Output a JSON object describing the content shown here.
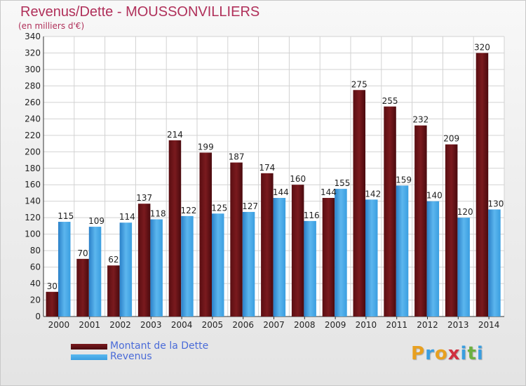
{
  "title": "Revenus/Dette - MOUSSONVILLIERS",
  "subtitle": "(en milliers d'€)",
  "colors": {
    "title": "#b0305a",
    "dette": "#7a1a1e",
    "revenus": "#3a9ee0",
    "legend_text": "#4a6bd8",
    "grid": "#d2d2d2"
  },
  "chart_data": {
    "type": "bar",
    "categories": [
      "2000",
      "2001",
      "2002",
      "2003",
      "2004",
      "2005",
      "2006",
      "2007",
      "2008",
      "2009",
      "2010",
      "2011",
      "2012",
      "2013",
      "2014"
    ],
    "series": [
      {
        "name": "Montant de la Dette",
        "values": [
          30,
          70,
          62,
          137,
          214,
          199,
          187,
          174,
          160,
          144,
          275,
          255,
          232,
          209,
          320
        ]
      },
      {
        "name": "Revenus",
        "values": [
          115,
          109,
          114,
          118,
          122,
          125,
          127,
          144,
          116,
          155,
          142,
          159,
          140,
          120,
          130
        ]
      }
    ],
    "ylim": [
      0,
      340
    ],
    "yticks": [
      0,
      20,
      40,
      60,
      80,
      100,
      120,
      140,
      160,
      180,
      200,
      220,
      240,
      260,
      280,
      300,
      320,
      340
    ],
    "grid": true,
    "legend_position": "bottom-left"
  },
  "legend": [
    {
      "label": "Montant de la Dette"
    },
    {
      "label": "Revenus"
    }
  ],
  "logo": {
    "letters": [
      "P",
      "r",
      "o",
      "x",
      "i",
      "t",
      "i"
    ],
    "colors": [
      "#e8a020",
      "#3a9ee0",
      "#e8a020",
      "#d03040",
      "#3a9ee0",
      "#6cb040",
      "#3a9ee0"
    ]
  }
}
